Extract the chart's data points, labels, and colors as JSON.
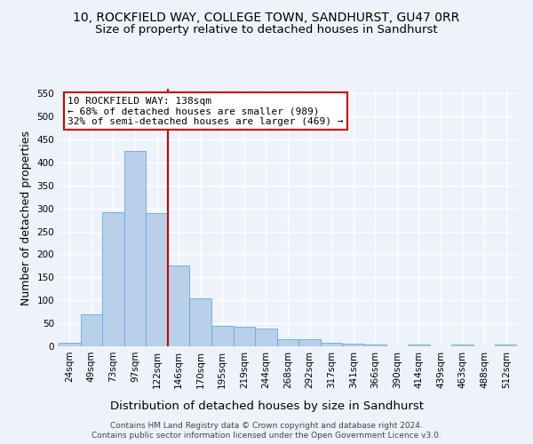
{
  "title_line1": "10, ROCKFIELD WAY, COLLEGE TOWN, SANDHURST, GU47 0RR",
  "title_line2": "Size of property relative to detached houses in Sandhurst",
  "xlabel": "Distribution of detached houses by size in Sandhurst",
  "ylabel": "Number of detached properties",
  "categories": [
    "24sqm",
    "49sqm",
    "73sqm",
    "97sqm",
    "122sqm",
    "146sqm",
    "170sqm",
    "195sqm",
    "219sqm",
    "244sqm",
    "268sqm",
    "292sqm",
    "317sqm",
    "341sqm",
    "366sqm",
    "390sqm",
    "414sqm",
    "439sqm",
    "463sqm",
    "488sqm",
    "512sqm"
  ],
  "values": [
    8,
    70,
    292,
    425,
    290,
    175,
    105,
    44,
    42,
    38,
    16,
    15,
    8,
    5,
    3,
    0,
    4,
    0,
    4,
    0,
    3
  ],
  "bar_color": "#b8d0ea",
  "bar_edge_color": "#6aaad4",
  "bar_width": 1.0,
  "vline_x": 4.5,
  "vline_color": "#cc0000",
  "annotation_text": "10 ROCKFIELD WAY: 138sqm\n← 68% of detached houses are smaller (989)\n32% of semi-detached houses are larger (469) →",
  "annotation_box_color": "#ffffff",
  "annotation_box_edge_color": "#cc0000",
  "ylim": [
    0,
    560
  ],
  "yticks": [
    0,
    50,
    100,
    150,
    200,
    250,
    300,
    350,
    400,
    450,
    500,
    550
  ],
  "footer_line1": "Contains HM Land Registry data © Crown copyright and database right 2024.",
  "footer_line2": "Contains public sector information licensed under the Open Government Licence v3.0.",
  "bg_color": "#eef2fa",
  "plot_bg_color": "#eef2fa",
  "grid_color": "#ffffff",
  "title_fontsize": 10,
  "subtitle_fontsize": 9.5,
  "axis_label_fontsize": 9,
  "tick_fontsize": 7.5,
  "annotation_fontsize": 8,
  "footer_fontsize": 6.5
}
